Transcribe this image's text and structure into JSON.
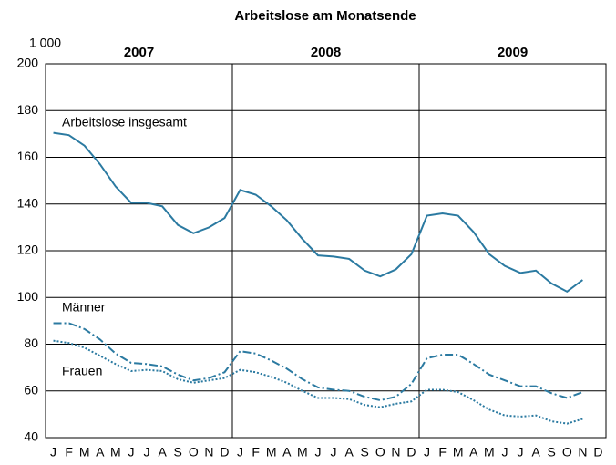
{
  "chart_data": {
    "type": "line",
    "title": "Arbeitslose am Monatsende",
    "y_unit": "1 000",
    "years": [
      "2007",
      "2008",
      "2009"
    ],
    "categories": [
      "J",
      "F",
      "M",
      "A",
      "M",
      "J",
      "J",
      "A",
      "S",
      "O",
      "N",
      "D",
      "J",
      "F",
      "M",
      "A",
      "M",
      "J",
      "J",
      "A",
      "S",
      "O",
      "N",
      "D",
      "J",
      "F",
      "M",
      "A",
      "M",
      "J",
      "J",
      "A",
      "S",
      "O",
      "N",
      "D"
    ],
    "series": [
      {
        "name": "Arbeitslose insgesamt",
        "color": "#2b7aa1",
        "dash": "solid",
        "values": [
          170.5,
          169.5,
          165,
          157,
          147.5,
          140.5,
          140.5,
          139,
          131,
          127.5,
          130,
          134,
          146,
          144,
          139,
          133,
          125,
          118,
          117.5,
          116.5,
          111.5,
          109,
          112,
          118.5,
          135,
          136,
          135,
          128,
          118.5,
          113.5,
          110.5,
          111.5,
          106,
          102.5,
          107.5,
          null
        ]
      },
      {
        "name": "Männer",
        "color": "#2b7aa1",
        "dash": "dashdot",
        "values": [
          89,
          89,
          86.5,
          82,
          76,
          72,
          71.5,
          70.5,
          67,
          64.5,
          65.5,
          68,
          77,
          76,
          73,
          69.5,
          65,
          61.5,
          60.5,
          60,
          57.5,
          56,
          57.5,
          63,
          74,
          75.5,
          75.5,
          71.5,
          67,
          64.5,
          62,
          62,
          59,
          57,
          59.5,
          null
        ]
      },
      {
        "name": "Frauen",
        "color": "#2b7aa1",
        "dash": "dotted",
        "values": [
          81.5,
          80.5,
          78.5,
          75,
          71.5,
          68.5,
          69,
          68.5,
          65,
          63.5,
          64.5,
          65.5,
          69,
          68,
          66,
          63.5,
          60,
          57,
          57,
          56.5,
          54,
          53,
          54.5,
          55.5,
          60.5,
          60.5,
          59.5,
          56,
          52,
          49.5,
          49,
          49.5,
          47,
          46,
          48,
          null
        ]
      }
    ],
    "ylim": [
      40,
      200
    ],
    "yticks": [
      40,
      60,
      80,
      100,
      120,
      140,
      160,
      180,
      200
    ],
    "grid": true
  }
}
